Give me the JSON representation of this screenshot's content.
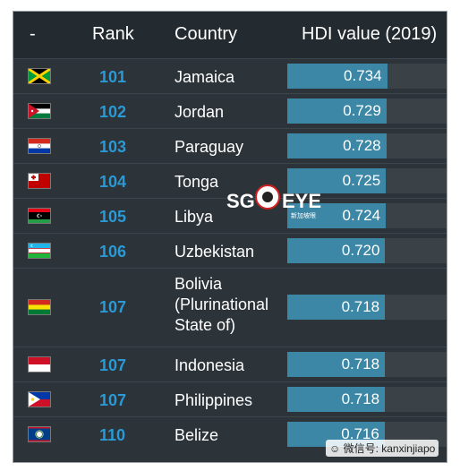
{
  "header": {
    "col_flag": "-",
    "col_rank": "Rank",
    "col_country": "Country",
    "col_hdi": "HDI value (2019)"
  },
  "rows": [
    {
      "rank": "101",
      "country": "Jamaica",
      "hdi": "0.734",
      "hdi_value": 0.734
    },
    {
      "rank": "102",
      "country": "Jordan",
      "hdi": "0.729",
      "hdi_value": 0.729
    },
    {
      "rank": "103",
      "country": "Paraguay",
      "hdi": "0.728",
      "hdi_value": 0.728
    },
    {
      "rank": "104",
      "country": "Tonga",
      "hdi": "0.725",
      "hdi_value": 0.725
    },
    {
      "rank": "105",
      "country": "Libya",
      "hdi": "0.724",
      "hdi_value": 0.724
    },
    {
      "rank": "106",
      "country": "Uzbekistan",
      "hdi": "0.720",
      "hdi_value": 0.72
    },
    {
      "rank": "107",
      "country": "Bolivia (Plurinational State of)",
      "hdi": "0.718",
      "hdi_value": 0.718
    },
    {
      "rank": "107",
      "country": "Indonesia",
      "hdi": "0.718",
      "hdi_value": 0.718
    },
    {
      "rank": "107",
      "country": "Philippines",
      "hdi": "0.718",
      "hdi_value": 0.718
    },
    {
      "rank": "110",
      "country": "Belize",
      "hdi": "0.716",
      "hdi_value": 0.716
    }
  ],
  "watermark": {
    "logo_sg": "SG",
    "logo_eye": "EYE",
    "logo_sub": "新加坡眼",
    "wechat": "微信号: kanxinjiapo"
  },
  "colors": {
    "rank_color": "#2a9ad6",
    "bar_color": "#3b87a5",
    "background": "#2c3339"
  }
}
